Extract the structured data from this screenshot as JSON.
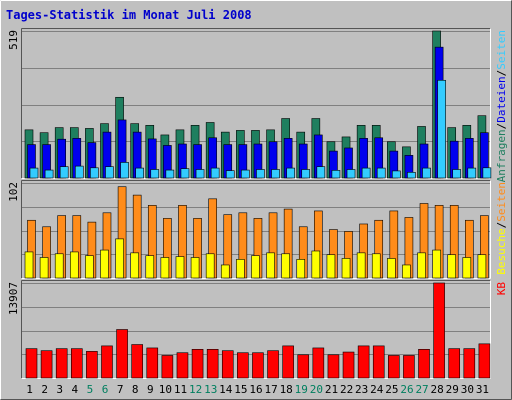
{
  "chart_data": {
    "type": "bar",
    "title": "Tages-Statistik im Monat Juli 2008",
    "categories": [
      "1",
      "2",
      "3",
      "4",
      "5",
      "6",
      "7",
      "8",
      "9",
      "10",
      "11",
      "12",
      "13",
      "14",
      "15",
      "16",
      "17",
      "18",
      "19",
      "20",
      "21",
      "22",
      "23",
      "24",
      "25",
      "26",
      "27",
      "28",
      "29",
      "30",
      "31"
    ],
    "weekend_days": [
      "5",
      "6",
      "12",
      "13",
      "19",
      "20",
      "26",
      "27"
    ],
    "colors": {
      "background": "#c0c0c0",
      "title": "#0000cc",
      "weekday": "#000000",
      "weekend": "#007f5f",
      "anfragen": "#1f7f5f",
      "dateien": "#0000ee",
      "seiten_top": "#33ccff",
      "besuche": "#ffff00",
      "seiten_mid": "#ff8c1a",
      "kb": "#ff0000"
    },
    "panels": [
      {
        "id": "top",
        "ytick_label": "519",
        "ymax": 519,
        "right_labels": [
          {
            "text": "Anfragen",
            "color": "#1f7f5f"
          },
          {
            "text": "/",
            "color": "#000000"
          },
          {
            "text": "Dateien",
            "color": "#0000ee"
          },
          {
            "text": "/",
            "color": "#000000"
          },
          {
            "text": "Seiten",
            "color": "#33ccff"
          }
        ],
        "series": [
          {
            "name": "Anfragen",
            "color": "#1f7f5f",
            "values": [
              170,
              160,
              178,
              178,
              175,
              192,
              285,
              192,
              186,
              152,
              170,
              186,
              196,
              162,
              168,
              168,
              170,
              210,
              162,
              210,
              128,
              145,
              186,
              186,
              128,
              110,
              182,
              519,
              178,
              186,
              220
            ]
          },
          {
            "name": "Dateien",
            "color": "#0000ee",
            "values": [
              118,
              118,
              137,
              140,
              125,
              162,
              205,
              162,
              138,
              115,
              120,
              118,
              142,
              118,
              118,
              120,
              128,
              140,
              120,
              152,
              95,
              106,
              140,
              142,
              95,
              80,
              120,
              462,
              130,
              140,
              160
            ]
          },
          {
            "name": "Seiten",
            "color": "#33ccff",
            "values": [
              35,
              28,
              40,
              42,
              36,
              40,
              55,
              35,
              30,
              28,
              33,
              30,
              35,
              26,
              28,
              30,
              30,
              35,
              30,
              40,
              27,
              30,
              35,
              35,
              25,
              20,
              35,
              345,
              30,
              35,
              36
            ]
          }
        ]
      },
      {
        "id": "middle",
        "ytick_label": "102",
        "ymax": 102,
        "right_labels": [
          {
            "text": "Besuche",
            "color": "#ffff00"
          },
          {
            "text": "/",
            "color": "#000000"
          },
          {
            "text": "Seiten",
            "color": "#ff8c1a"
          }
        ],
        "series": [
          {
            "name": "Seiten",
            "color": "#ff8c1a",
            "values": [
              62,
              55,
              67,
              67,
              60,
              70,
              98,
              89,
              78,
              64,
              78,
              64,
              85,
              68,
              70,
              64,
              70,
              74,
              55,
              72,
              52,
              50,
              58,
              62,
              72,
              65,
              80,
              78,
              78,
              62,
              67
            ]
          },
          {
            "name": "Besuche",
            "color": "#ffff00",
            "values": [
              28,
              22,
              26,
              28,
              24,
              30,
              42,
              27,
              24,
              22,
              23,
              22,
              26,
              14,
              20,
              24,
              27,
              26,
              20,
              29,
              25,
              21,
              27,
              26,
              21,
              14,
              27,
              30,
              25,
              22,
              25
            ]
          }
        ]
      },
      {
        "id": "bottom",
        "ytick_label": "13907",
        "ymax": 13907,
        "right_labels": [
          {
            "text": "KB",
            "color": "#ff0000"
          }
        ],
        "series": [
          {
            "name": "KB",
            "color": "#ff0000",
            "values": [
              4300,
              4000,
              4300,
              4300,
              3900,
              4700,
              7100,
              4900,
              4400,
              3300,
              3700,
              4200,
              4200,
              4000,
              3700,
              3700,
              4000,
              4700,
              3400,
              4400,
              3400,
              3800,
              4700,
              4700,
              3300,
              3300,
              4200,
              13907,
              4300,
              4300,
              5000
            ]
          }
        ]
      }
    ]
  }
}
